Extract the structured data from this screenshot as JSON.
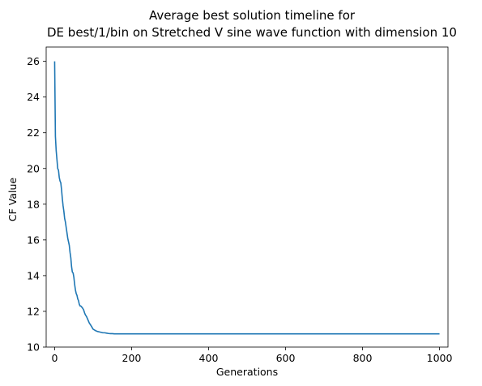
{
  "chart_data": {
    "type": "line",
    "title_line1": "Average best solution timeline for",
    "title_line2": "DE best/1/bin on Stretched V sine wave function with dimension 10",
    "xlabel": "Generations",
    "ylabel": "CF Value",
    "xlim": [
      -22,
      1022
    ],
    "ylim": [
      10,
      26.8
    ],
    "xticks": [
      0,
      200,
      400,
      600,
      800,
      1000
    ],
    "yticks": [
      10,
      12,
      14,
      16,
      18,
      20,
      22,
      24,
      26
    ],
    "grid": false,
    "line_color": "#1f77b4",
    "series": [
      {
        "x": [
          0,
          2,
          4,
          6,
          8,
          10,
          12,
          14,
          16,
          18,
          20,
          22,
          24,
          26,
          28,
          30,
          32,
          34,
          36,
          38,
          40,
          42,
          44,
          46,
          48,
          50,
          52,
          54,
          56,
          58,
          60,
          62,
          64,
          66,
          68,
          70,
          72,
          75,
          78,
          80,
          83,
          86,
          90,
          93,
          96,
          100,
          104,
          108,
          112,
          116,
          120,
          125,
          130,
          135,
          140,
          145,
          150,
          155,
          160,
          200,
          300,
          400,
          500,
          600,
          700,
          800,
          900,
          1000
        ],
        "y": [
          26.0,
          21.8,
          21.0,
          20.5,
          20.0,
          19.9,
          19.5,
          19.3,
          19.2,
          18.8,
          18.3,
          17.9,
          17.6,
          17.2,
          17.0,
          16.7,
          16.4,
          16.1,
          15.9,
          15.7,
          15.3,
          15.0,
          14.5,
          14.2,
          14.15,
          13.9,
          13.5,
          13.2,
          13.0,
          12.9,
          12.7,
          12.6,
          12.4,
          12.3,
          12.3,
          12.25,
          12.2,
          12.1,
          11.9,
          11.8,
          11.7,
          11.55,
          11.35,
          11.25,
          11.15,
          11.0,
          10.95,
          10.9,
          10.87,
          10.85,
          10.83,
          10.8,
          10.8,
          10.78,
          10.76,
          10.75,
          10.75,
          10.74,
          10.74,
          10.74,
          10.74,
          10.74,
          10.74,
          10.74,
          10.74,
          10.74,
          10.74,
          10.74
        ]
      }
    ]
  }
}
